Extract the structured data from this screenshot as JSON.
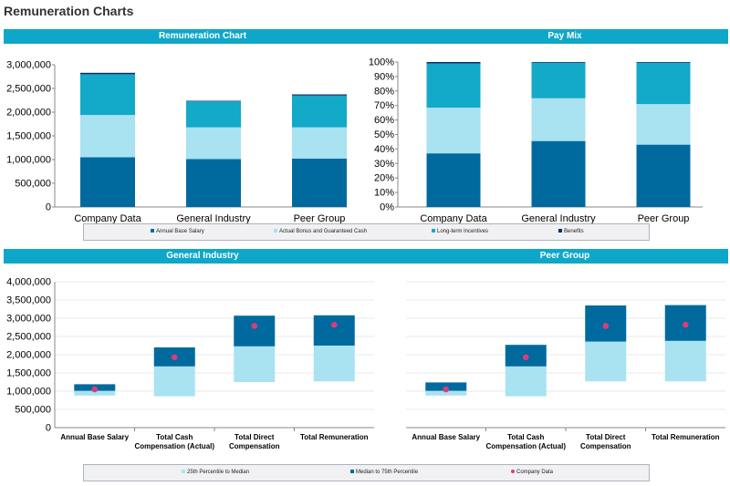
{
  "page": {
    "title": "Remuneration Charts"
  },
  "colors": {
    "base": "#006a9e",
    "bonus": "#a9e2f0",
    "lti": "#13a9c8",
    "benefits": "#0b2d6b",
    "low": "#a9e2f0",
    "high": "#006a9e",
    "dot": "#d63e7c",
    "band": "#0fa7c9"
  },
  "panels": {
    "remuneration": "Remuneration Chart",
    "paymix": "Pay Mix",
    "general": "General Industry",
    "peer": "Peer Group"
  },
  "legend_top": {
    "items": [
      {
        "label": "Annual Base Salary",
        "color": "#006a9e"
      },
      {
        "label": "Actual Bonus and Guaranteed Cash",
        "color": "#a9e2f0"
      },
      {
        "label": "Long-term Incentives",
        "color": "#13a9c8"
      },
      {
        "label": "Benefits",
        "color": "#0b2d6b"
      }
    ]
  },
  "legend_bottom": {
    "items": [
      {
        "label": "25th Percentile to Median",
        "color": "#a9e2f0"
      },
      {
        "label": "Median to 75th Percentile",
        "color": "#006a9e"
      },
      {
        "label": "Company Data",
        "color": "#d63e7c"
      }
    ]
  },
  "chart_data": [
    {
      "id": "remuneration",
      "type": "bar",
      "stacked": true,
      "title": "Remuneration Chart",
      "categories": [
        "Company Data",
        "General Industry",
        "Peer Group"
      ],
      "series": [
        {
          "name": "Annual Base Salary",
          "values": [
            1050000,
            1010000,
            1020000
          ]
        },
        {
          "name": "Actual Bonus and Guaranteed Cash",
          "values": [
            890000,
            670000,
            660000
          ]
        },
        {
          "name": "Long-term Incentives",
          "values": [
            860000,
            550000,
            670000
          ]
        },
        {
          "name": "Benefits",
          "values": [
            30000,
            10000,
            25000
          ]
        }
      ],
      "ylim": [
        0,
        3000000
      ],
      "yticks": [
        0,
        500000,
        1000000,
        1500000,
        2000000,
        2500000,
        3000000
      ],
      "ytick_labels": [
        "0",
        "500,000",
        "1,000,000",
        "1,500,000",
        "2,000,000",
        "2,500,000",
        "3,000,000"
      ]
    },
    {
      "id": "paymix",
      "type": "bar",
      "stacked": true,
      "title": "Pay Mix",
      "categories": [
        "Company Data",
        "General Industry",
        "Peer Group"
      ],
      "series": [
        {
          "name": "Annual Base Salary",
          "values": [
            37,
            45.5,
            43
          ]
        },
        {
          "name": "Actual Bonus and Guaranteed Cash",
          "values": [
            31.5,
            29.5,
            28
          ]
        },
        {
          "name": "Long-term Incentives",
          "values": [
            30.5,
            24.5,
            28.5
          ]
        },
        {
          "name": "Benefits",
          "values": [
            1,
            0.5,
            0.5
          ]
        }
      ],
      "ylim": [
        0,
        100
      ],
      "yticks": [
        0,
        10,
        20,
        30,
        40,
        50,
        60,
        70,
        80,
        90,
        100
      ],
      "ytick_labels": [
        "0%",
        "10%",
        "20%",
        "30%",
        "40%",
        "50%",
        "60%",
        "70%",
        "80%",
        "90%",
        "100%"
      ]
    },
    {
      "id": "general",
      "type": "bar",
      "subtype": "floating-range",
      "title": "General Industry",
      "categories": [
        "Annual Base Salary",
        "Total Cash Compensation (Actual)",
        "Total Direct Compensation",
        "Total Remuneration"
      ],
      "category_lines": [
        [
          "Annual Base Salary"
        ],
        [
          "Total Cash",
          "Compensation (Actual)"
        ],
        [
          "Total Direct",
          "Compensation"
        ],
        [
          "Total Remuneration"
        ]
      ],
      "series": [
        {
          "name": "25th Percentile",
          "values": [
            880000,
            860000,
            1250000,
            1270000
          ]
        },
        {
          "name": "Median",
          "values": [
            1010000,
            1680000,
            2230000,
            2250000
          ]
        },
        {
          "name": "75th Percentile",
          "values": [
            1190000,
            2200000,
            3070000,
            3080000
          ]
        },
        {
          "name": "Company Data",
          "values": [
            1050000,
            1930000,
            2790000,
            2820000
          ]
        }
      ],
      "ylim": [
        0,
        4000000
      ],
      "yticks": [
        0,
        500000,
        1000000,
        1500000,
        2000000,
        2500000,
        3000000,
        3500000,
        4000000
      ],
      "ytick_labels": [
        "0",
        "500,000",
        "1,000,000",
        "1,500,000",
        "2,000,000",
        "2,500,000",
        "3,000,000",
        "3,500,000",
        "4,000,000"
      ]
    },
    {
      "id": "peer",
      "type": "bar",
      "subtype": "floating-range",
      "title": "Peer Group",
      "categories": [
        "Annual Base Salary",
        "Total Cash Compensation (Actual)",
        "Total Direct Compensation",
        "Total Remuneration"
      ],
      "category_lines": [
        [
          "Annual Base Salary"
        ],
        [
          "Total Cash",
          "Compensation (Actual)"
        ],
        [
          "Total Direct",
          "Compensation"
        ],
        [
          "Total Remuneration"
        ]
      ],
      "series": [
        {
          "name": "25th Percentile",
          "values": [
            880000,
            860000,
            1270000,
            1270000
          ]
        },
        {
          "name": "Median",
          "values": [
            1010000,
            1680000,
            2360000,
            2380000
          ]
        },
        {
          "name": "75th Percentile",
          "values": [
            1240000,
            2270000,
            3350000,
            3360000
          ]
        },
        {
          "name": "Company Data",
          "values": [
            1050000,
            1930000,
            2790000,
            2820000
          ]
        }
      ],
      "ylim": [
        0,
        4000000
      ],
      "yticks": [
        0,
        500000,
        1000000,
        1500000,
        2000000,
        2500000,
        3000000,
        3500000,
        4000000
      ],
      "ytick_labels": []
    }
  ]
}
